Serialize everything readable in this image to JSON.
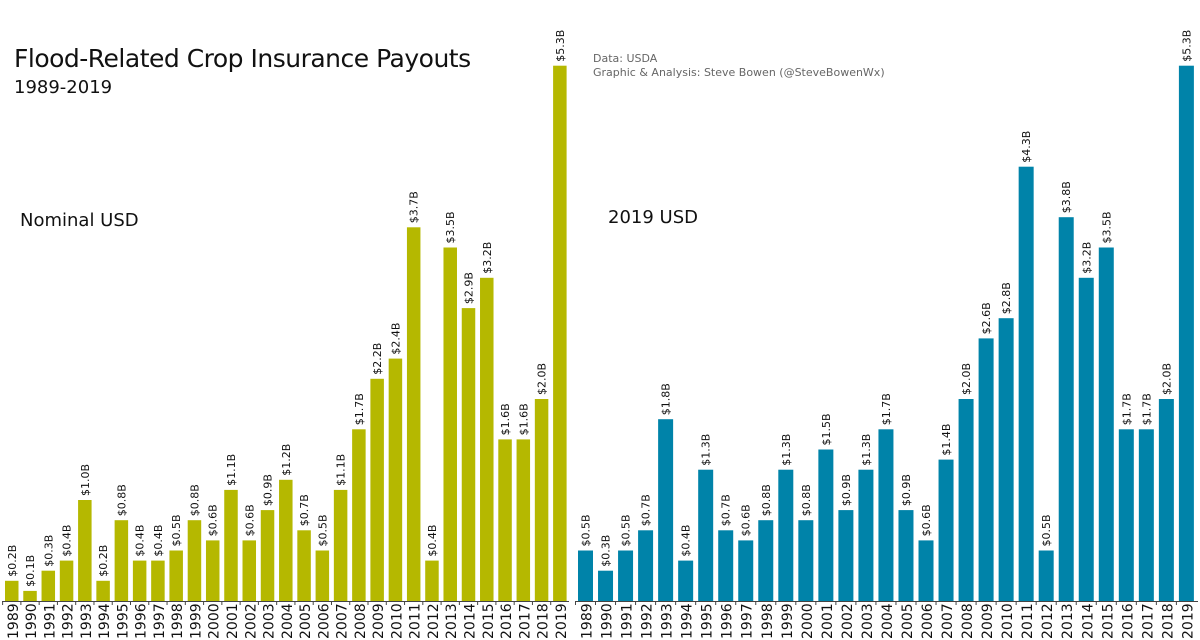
{
  "title": "Flood-Related Crop Insurance Payouts",
  "subtitle": "1989-2019",
  "source_lines": [
    "Data: USDA",
    "Graphic & Analysis: Steve Bowen (@SteveBowenWx)"
  ],
  "chart_data": [
    {
      "type": "bar",
      "title": "Nominal USD",
      "color": "#b5b800",
      "categories": [
        "1989",
        "1990",
        "1991",
        "1992",
        "1993",
        "1994",
        "1995",
        "1996",
        "1997",
        "1998",
        "1999",
        "2000",
        "2001",
        "2002",
        "2003",
        "2004",
        "2005",
        "2006",
        "2007",
        "2008",
        "2009",
        "2010",
        "2011",
        "2012",
        "2013",
        "2014",
        "2015",
        "2016",
        "2017",
        "2018",
        "2019"
      ],
      "values": [
        0.2,
        0.1,
        0.3,
        0.4,
        1.0,
        0.2,
        0.8,
        0.4,
        0.4,
        0.5,
        0.8,
        0.6,
        1.1,
        0.6,
        0.9,
        1.2,
        0.7,
        0.5,
        1.1,
        1.7,
        2.2,
        2.4,
        3.7,
        0.4,
        3.5,
        2.9,
        3.2,
        1.6,
        1.6,
        2.0,
        5.3
      ],
      "labels": [
        "$0.2B",
        "$0.1B",
        "$0.3B",
        "$0.4B",
        "$1.0B",
        "$0.2B",
        "$0.8B",
        "$0.4B",
        "$0.4B",
        "$0.5B",
        "$0.8B",
        "$0.6B",
        "$1.1B",
        "$0.6B",
        "$0.9B",
        "$1.2B",
        "$0.7B",
        "$0.5B",
        "$1.1B",
        "$1.7B",
        "$2.2B",
        "$2.4B",
        "$3.7B",
        "$0.4B",
        "$3.5B",
        "$2.9B",
        "$3.2B",
        "$1.6B",
        "$1.6B",
        "$2.0B",
        "$5.3B"
      ],
      "ylim": [
        0,
        5.3
      ],
      "grid": false
    },
    {
      "type": "bar",
      "title": "2019 USD",
      "color": "#0083a9",
      "categories": [
        "1989",
        "1990",
        "1991",
        "1992",
        "1993",
        "1994",
        "1995",
        "1996",
        "1997",
        "1998",
        "1999",
        "2000",
        "2001",
        "2002",
        "2003",
        "2004",
        "2005",
        "2006",
        "2007",
        "2008",
        "2009",
        "2010",
        "2011",
        "2012",
        "2013",
        "2014",
        "2015",
        "2016",
        "2017",
        "2018",
        "2019"
      ],
      "values": [
        0.5,
        0.3,
        0.5,
        0.7,
        1.8,
        0.4,
        1.3,
        0.7,
        0.6,
        0.8,
        1.3,
        0.8,
        1.5,
        0.9,
        1.3,
        1.7,
        0.9,
        0.6,
        1.4,
        2.0,
        2.6,
        2.8,
        4.3,
        0.5,
        3.8,
        3.2,
        3.5,
        1.7,
        1.7,
        2.0,
        5.3
      ],
      "labels": [
        "$0.5B",
        "$0.3B",
        "$0.5B",
        "$0.7B",
        "$1.8B",
        "$0.4B",
        "$1.3B",
        "$0.7B",
        "$0.6B",
        "$0.8B",
        "$1.3B",
        "$0.8B",
        "$1.5B",
        "$0.9B",
        "$1.3B",
        "$1.7B",
        "$0.9B",
        "$0.6B",
        "$1.4B",
        "$2.0B",
        "$2.6B",
        "$2.8B",
        "$4.3B",
        "$0.5B",
        "$3.8B",
        "$3.2B",
        "$3.5B",
        "$1.7B",
        "$1.7B",
        "$2.0B",
        "$5.3B"
      ],
      "ylim": [
        0,
        5.3
      ],
      "grid": false
    }
  ]
}
